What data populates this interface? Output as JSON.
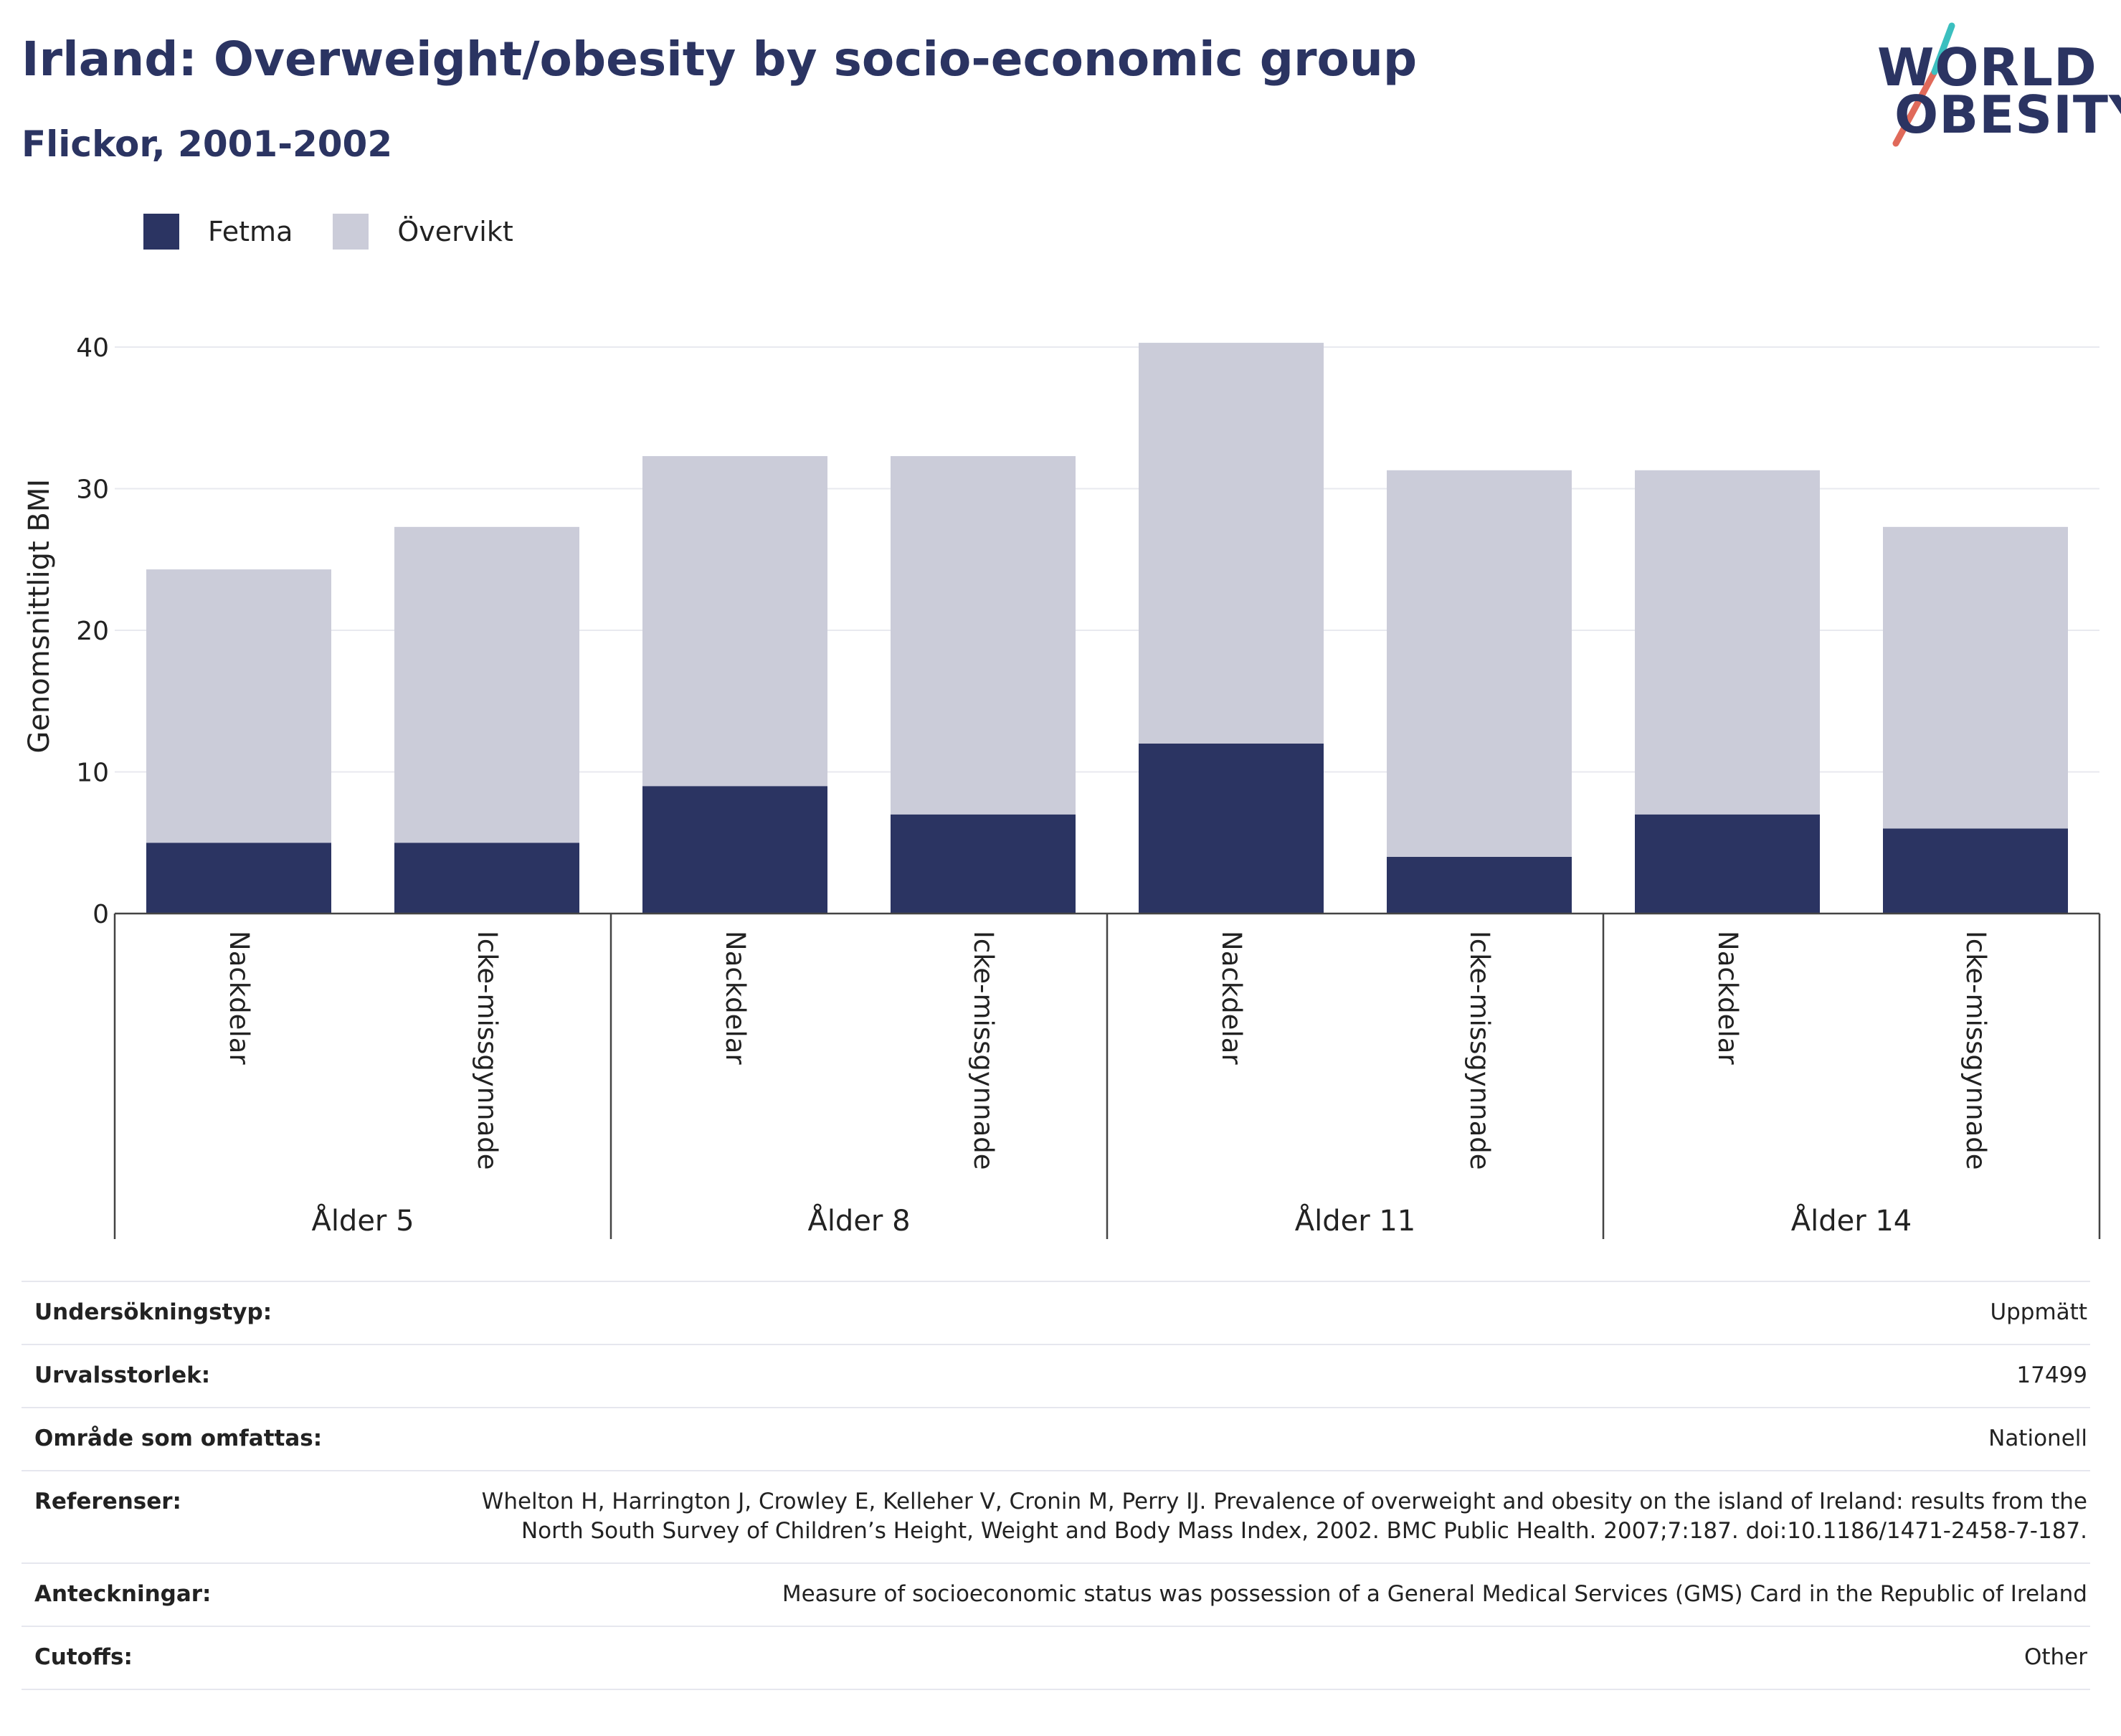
{
  "title": "Irland: Overweight/obesity by socio-economic group",
  "subtitle": "Flickor, 2001-2002",
  "logo": {
    "line1": "WORLD",
    "line2": "OBESITY"
  },
  "colors": {
    "fetma": "#2b3462",
    "overvikt": "#cbccd9",
    "text": "#2b3462",
    "logo_accent_red": "#e06a5a",
    "logo_accent_teal": "#3bbfbf"
  },
  "legend": [
    {
      "label": "Fetma",
      "color": "#2b3462"
    },
    {
      "label": "Övervikt",
      "color": "#cbccd9"
    }
  ],
  "chart_data": {
    "type": "bar",
    "stacked": true,
    "ylabel": "Genomsnittligt BMI",
    "ylim": [
      0,
      42
    ],
    "yticks": [
      0,
      10,
      20,
      30,
      40
    ],
    "grid": true,
    "legend_position": "top-left",
    "groups": [
      {
        "label": "Ålder 5",
        "categories": [
          "Nackdelar",
          "Icke-missgynnade"
        ]
      },
      {
        "label": "Ålder 8",
        "categories": [
          "Nackdelar",
          "Icke-missgynnade"
        ]
      },
      {
        "label": "Ålder 11",
        "categories": [
          "Nackdelar",
          "Icke-missgynnade"
        ]
      },
      {
        "label": "Ålder 14",
        "categories": [
          "Nackdelar",
          "Icke-missgynnade"
        ]
      }
    ],
    "categories": [
      "Nackdelar",
      "Icke-missgynnade",
      "Nackdelar",
      "Icke-missgynnade",
      "Nackdelar",
      "Icke-missgynnade",
      "Nackdelar",
      "Icke-missgynnade"
    ],
    "series": [
      {
        "name": "Fetma",
        "values": [
          5,
          5,
          9,
          7,
          12,
          4,
          7,
          6
        ]
      },
      {
        "name": "Övervikt",
        "values": [
          19.3,
          22.3,
          23.3,
          25.3,
          28.3,
          27.3,
          24.3,
          21.3
        ]
      }
    ]
  },
  "meta": [
    {
      "key": "Undersökningstyp:",
      "value": "Uppmätt"
    },
    {
      "key": "Urvalsstorlek:",
      "value": "17499"
    },
    {
      "key": "Område som omfattas:",
      "value": "Nationell"
    },
    {
      "key": "Referenser:",
      "value": "Whelton H, Harrington J, Crowley E, Kelleher V, Cronin M, Perry IJ. Prevalence of overweight and obesity on the island of Ireland: results from the North South Survey of Children’s Height, Weight and Body Mass Index, 2002. BMC Public Health. 2007;7:187. doi:10.1186/1471-2458-7-187."
    },
    {
      "key": "Anteckningar:",
      "value": "Measure of socioeconomic status was possession of a General Medical Services (GMS) Card in the Republic of Ireland"
    },
    {
      "key": "Cutoffs:",
      "value": "Other"
    }
  ]
}
